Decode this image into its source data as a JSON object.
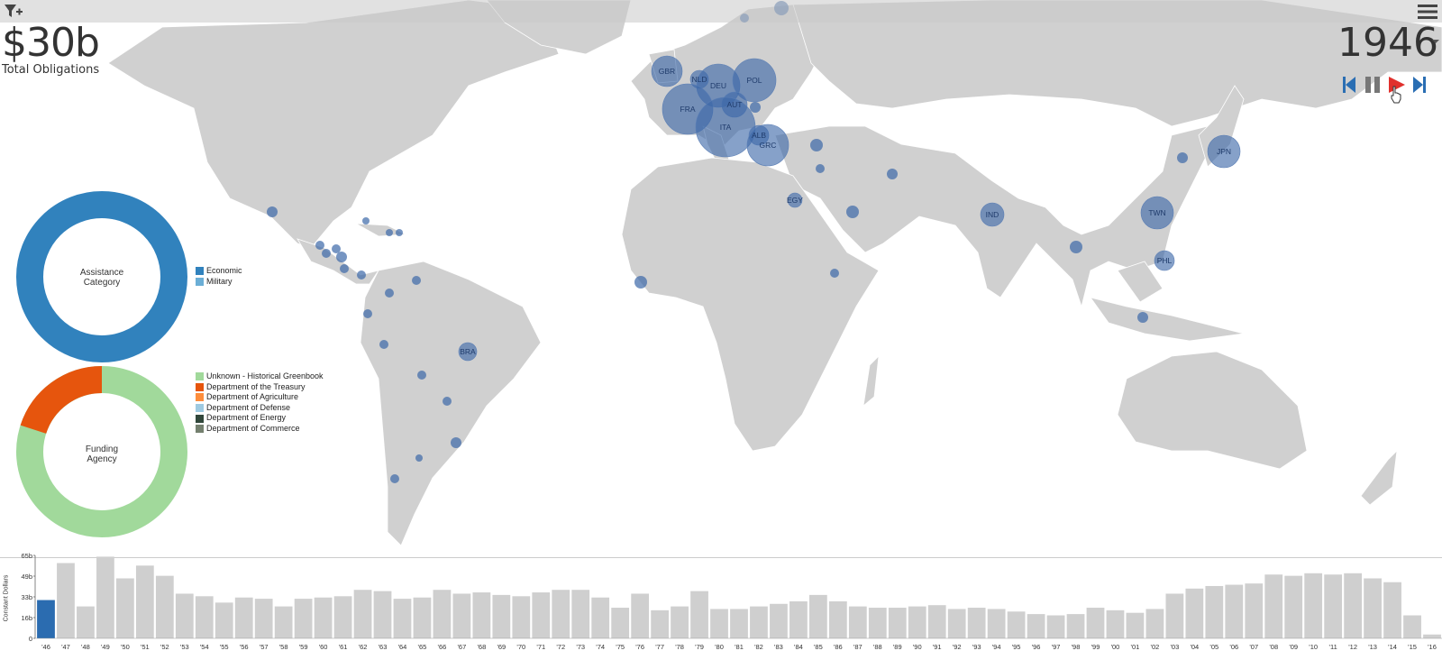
{
  "toolbar": {
    "filter_icon": "filter-add-icon",
    "menu_icon": "hamburger-menu-icon"
  },
  "summary": {
    "total_value": "$30b",
    "total_label": "Total Obligations"
  },
  "year_selector": {
    "year": "1946"
  },
  "playback": {
    "icons": [
      "skip-back-icon",
      "pause-icon",
      "play-icon",
      "skip-forward-icon"
    ],
    "play_color": "#e0312d",
    "icon_color": "#2a6eb3"
  },
  "map": {
    "land_color": "#d0d0d0",
    "bubble_color": "#3c68a8",
    "labeled_countries": [
      "GBR",
      "NLD",
      "DEU",
      "POL",
      "FRA",
      "AUT",
      "ITA",
      "ALB",
      "GRC",
      "EGY",
      "JPN",
      "TWN",
      "IND",
      "PHL",
      "BRA"
    ]
  },
  "assistance_category": {
    "center_label_line1": "Assistance",
    "center_label_line2": "Category",
    "legend": [
      {
        "label": "Economic",
        "color": "#3182bd"
      },
      {
        "label": "Military",
        "color": "#6baed6"
      }
    ],
    "values": {
      "Economic": 100,
      "Military": 0
    }
  },
  "funding_agency": {
    "center_label_line1": "Funding",
    "center_label_line2": "Agency",
    "legend": [
      {
        "label": "Unknown - Historical Greenbook",
        "color": "#a1d99b"
      },
      {
        "label": "Department of the Treasury",
        "color": "#e6550d"
      },
      {
        "label": "Department of Agriculture",
        "color": "#fd8d3c"
      },
      {
        "label": "Department of Defense",
        "color": "#9ecae1"
      },
      {
        "label": "Department of Energy",
        "color": "#31473b"
      },
      {
        "label": "Department of Commerce",
        "color": "#74806f"
      }
    ],
    "values": {
      "Unknown - Historical Greenbook": 80,
      "Department of the Treasury": 20
    }
  },
  "chart_data": {
    "type": "bar",
    "ylabel": "Constant Dollars",
    "yticks": [
      "0",
      "16b",
      "33b",
      "49b",
      "65b"
    ],
    "ylim": [
      0,
      65
    ],
    "categories": [
      "'46",
      "'47",
      "'48",
      "'49",
      "'50",
      "'51",
      "'52",
      "'53",
      "'54",
      "'55",
      "'56",
      "'57",
      "'58",
      "'59",
      "'60",
      "'61",
      "'62",
      "'63",
      "'64",
      "'65",
      "'66",
      "'67",
      "'68",
      "'69",
      "'70",
      "'71",
      "'72",
      "'73",
      "'74",
      "'75",
      "'76",
      "'77",
      "'78",
      "'79",
      "'80",
      "'81",
      "'82",
      "'83",
      "'84",
      "'85",
      "'86",
      "'87",
      "'88",
      "'89",
      "'90",
      "'91",
      "'92",
      "'93",
      "'94",
      "'95",
      "'96",
      "'97",
      "'98",
      "'99",
      "'00",
      "'01",
      "'02",
      "'03",
      "'04",
      "'05",
      "'06",
      "'07",
      "'08",
      "'09",
      "'10",
      "'11",
      "'12",
      "'13",
      "'14",
      "'15",
      "'16"
    ],
    "values": [
      30,
      59,
      25,
      64,
      47,
      57,
      49,
      35,
      33,
      28,
      32,
      31,
      25,
      31,
      32,
      33,
      38,
      37,
      31,
      32,
      38,
      35,
      36,
      34,
      33,
      36,
      38,
      38,
      32,
      24,
      35,
      22,
      25,
      37,
      23,
      23,
      25,
      27,
      29,
      34,
      29,
      25,
      24,
      24,
      25,
      26,
      23,
      24,
      23,
      21,
      19,
      18,
      19,
      24,
      22,
      20,
      23,
      35,
      39,
      41,
      42,
      43,
      50,
      49,
      51,
      50,
      51,
      47,
      44,
      18,
      3
    ],
    "highlight_index": 0,
    "highlight_color": "#2b6cb0",
    "bar_color": "#cfcfcf"
  }
}
